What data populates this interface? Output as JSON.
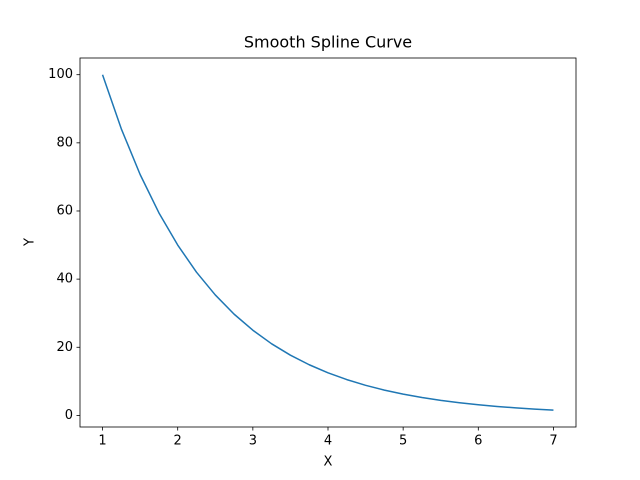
{
  "chart_data": {
    "type": "line",
    "title": "Smooth Spline Curve",
    "x_label": "X",
    "y_label": "Y",
    "x": [
      1,
      1.25,
      1.5,
      1.75,
      2,
      2.25,
      2.5,
      2.75,
      3,
      3.25,
      3.5,
      3.75,
      4,
      4.25,
      4.5,
      4.75,
      5,
      5.25,
      5.5,
      5.75,
      6,
      6.25,
      6.5,
      6.75,
      7
    ],
    "series": [
      {
        "name": "Y",
        "color": "#1f77b4",
        "values": [
          100,
          84.09,
          70.71,
          59.46,
          50,
          42.04,
          35.36,
          29.73,
          25,
          21.02,
          17.68,
          14.87,
          12.5,
          10.51,
          8.84,
          7.43,
          6.25,
          5.26,
          4.42,
          3.72,
          3.13,
          2.63,
          2.21,
          1.86,
          1.56
        ]
      }
    ],
    "xlim": [
      0.7,
      7.3
    ],
    "xticks": [
      1,
      2,
      3,
      4,
      5,
      6,
      7
    ],
    "ylim": [
      -3.4,
      104.9
    ],
    "yticks": [
      0,
      20,
      40,
      60,
      80,
      100
    ],
    "grid": false,
    "legend": false
  }
}
